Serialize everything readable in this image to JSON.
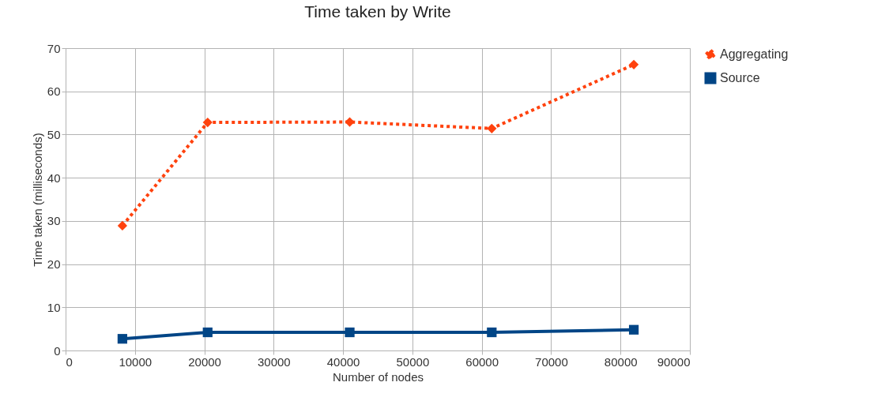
{
  "chart_data": {
    "type": "line",
    "title": "Time taken by Write",
    "xlabel": "Number of nodes",
    "ylabel": "Time taken (milliseconds)",
    "x": [
      8192,
      20480,
      40960,
      61440,
      81920
    ],
    "series": [
      {
        "name": "Aggregating",
        "color": "#ff420e",
        "marker": "diamond",
        "line_style": "dotted",
        "values": [
          28.9,
          52.8,
          52.9,
          51.4,
          66.2
        ]
      },
      {
        "name": "Source",
        "color": "#004586",
        "marker": "square",
        "line_style": "solid",
        "values": [
          2.7,
          4.2,
          4.2,
          4.2,
          4.8
        ]
      }
    ],
    "xlim": [
      0,
      90000
    ],
    "xticks": [
      0,
      10000,
      20000,
      30000,
      40000,
      50000,
      60000,
      70000,
      80000,
      90000
    ],
    "ylim": [
      0,
      70
    ],
    "yticks": [
      0,
      10,
      20,
      30,
      40,
      50,
      60,
      70
    ],
    "grid": true,
    "legend": "right"
  }
}
